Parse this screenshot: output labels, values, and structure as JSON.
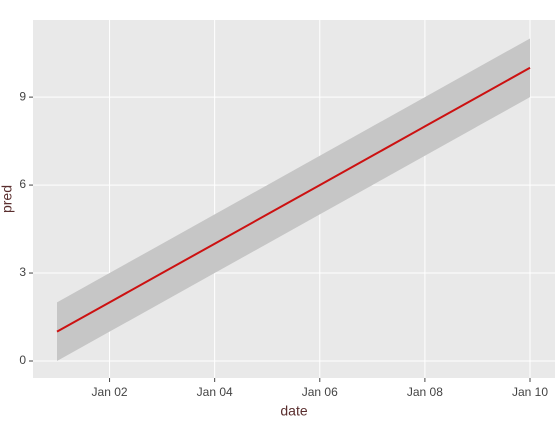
{
  "chart_data": {
    "type": "line",
    "x": [
      "Jan 01",
      "Jan 02",
      "Jan 03",
      "Jan 04",
      "Jan 05",
      "Jan 06",
      "Jan 07",
      "Jan 08",
      "Jan 09",
      "Jan 10"
    ],
    "values": [
      1,
      2,
      3,
      4,
      5,
      6,
      7,
      8,
      9,
      10
    ],
    "color": "#cc1111",
    "ribbon": {
      "lower": [
        0,
        1,
        2,
        3,
        4,
        5,
        6,
        7,
        8,
        9
      ],
      "upper": [
        2,
        3,
        4,
        5,
        6,
        7,
        8,
        9,
        10,
        11
      ],
      "color": "#c6c6c6"
    },
    "xlabel": "date",
    "ylabel": "pred",
    "xticks": [
      "Jan 02",
      "Jan 04",
      "Jan 06",
      "Jan 08",
      "Jan 10"
    ],
    "ylim": [
      -0.58,
      11.63
    ],
    "yticks": [
      0,
      3,
      6,
      9
    ],
    "grid": true,
    "background": "#e9e9e9"
  }
}
